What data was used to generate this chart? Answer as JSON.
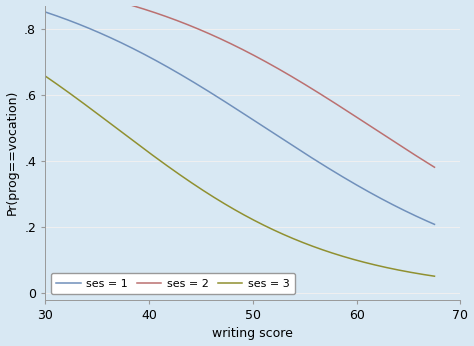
{
  "xlabel": "writing score",
  "ylabel": "Pr(prog==vocation)",
  "xlim": [
    30,
    70
  ],
  "ylim": [
    -0.02,
    0.87
  ],
  "xticks": [
    30,
    40,
    50,
    60,
    70
  ],
  "yticks": [
    0,
    0.2,
    0.4,
    0.6,
    0.8
  ],
  "ytick_labels": [
    "0",
    ".2",
    ".4",
    ".6",
    ".8"
  ],
  "background_color": "#d8e8f3",
  "plot_bg_color": "#d8e8f3",
  "outer_bg_color": "#c8d8e8",
  "grid_color": "#f0f0f0",
  "curve_params": [
    {
      "label": "ses = 1",
      "color": "#7090bb",
      "a": 4.2,
      "b": -0.082
    },
    {
      "label": "ses = 2",
      "color": "#bb7070",
      "a": 5.05,
      "b": -0.082
    },
    {
      "label": "ses = 3",
      "color": "#909030",
      "a": 3.5,
      "b": -0.095
    }
  ],
  "linewidth": 1.1,
  "legend_fontsize": 8,
  "axis_fontsize": 9,
  "label_fontsize": 9,
  "figsize": [
    4.74,
    3.46
  ],
  "dpi": 100
}
